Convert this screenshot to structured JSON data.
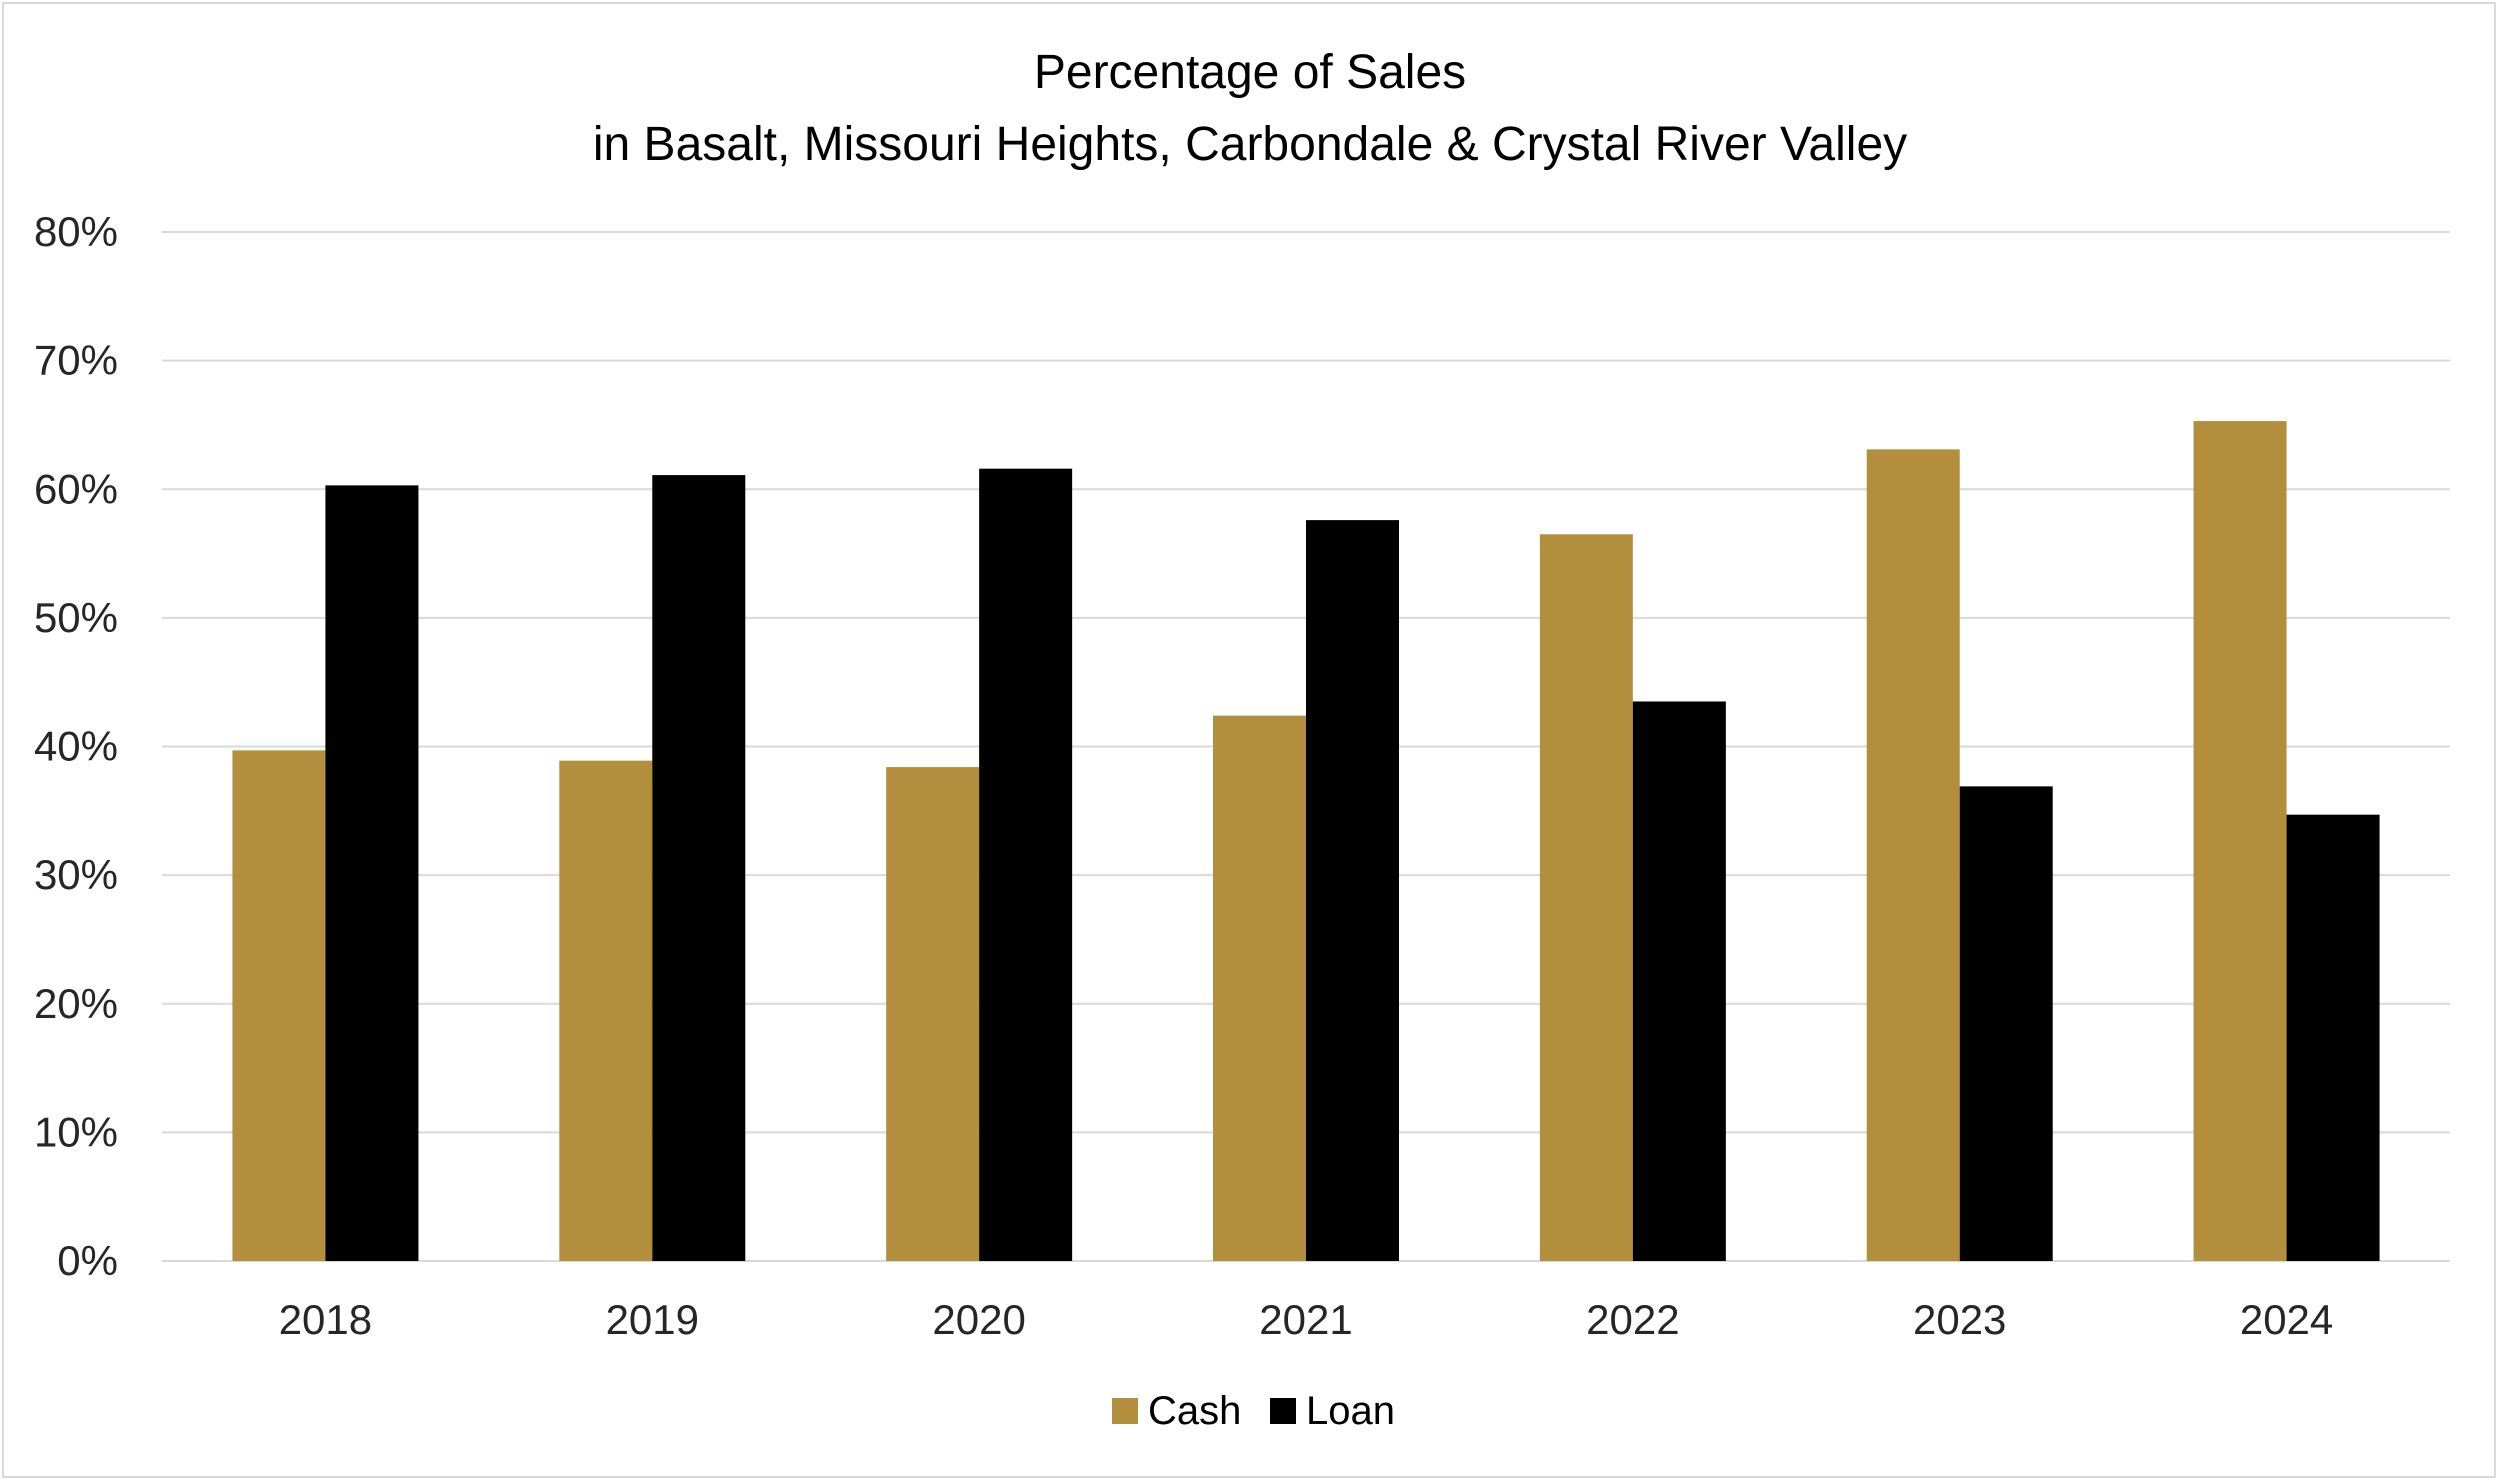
{
  "chart_data": {
    "type": "bar",
    "title": "Percentage of Sales",
    "subtitle": "in Basalt, Missouri Heights, Carbondale & Crystal River Valley",
    "xlabel": "",
    "ylabel": "",
    "categories": [
      "2018",
      "2019",
      "2020",
      "2021",
      "2022",
      "2023",
      "2024"
    ],
    "series": [
      {
        "name": "Cash",
        "color": "#b38f3d",
        "values": [
          39.7,
          38.9,
          38.4,
          42.4,
          56.5,
          63.1,
          65.3
        ]
      },
      {
        "name": "Loan",
        "color": "#000000",
        "values": [
          60.3,
          61.1,
          61.6,
          57.6,
          43.5,
          36.9,
          34.7
        ]
      }
    ],
    "ylim": [
      0,
      80
    ],
    "yticks": [
      "0%",
      "10%",
      "20%",
      "30%",
      "40%",
      "50%",
      "60%",
      "70%",
      "80%"
    ],
    "grid": true,
    "gridline_color": "#d9d9d9",
    "legend_position": "bottom"
  }
}
